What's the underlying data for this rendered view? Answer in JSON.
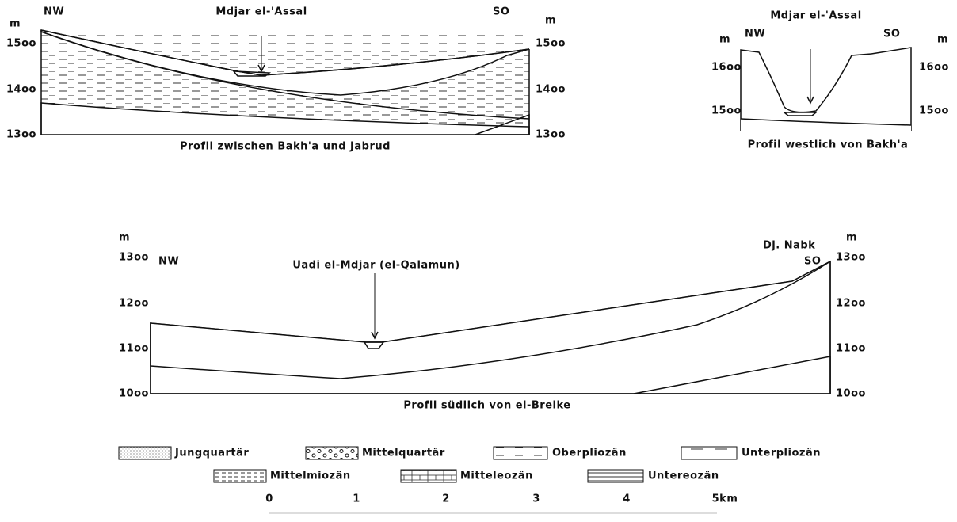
{
  "profile_1": {
    "corner_left": "NW",
    "corner_right": "SO",
    "unit_left": "m",
    "unit_right": "m",
    "label": "Mdjar el-'Assal",
    "ticks_left": [
      "15oo",
      "14oo",
      "13oo"
    ],
    "ticks_right": [
      "15oo",
      "14oo",
      "13oo"
    ],
    "caption": "Profil zwischen Bakh'a und Jabrud"
  },
  "profile_2": {
    "corner_left": "NW",
    "corner_right": "SO",
    "unit_left": "m",
    "unit_right": "m",
    "label": "Mdjar el-'Assal",
    "ticks_left": [
      "16oo",
      "15oo"
    ],
    "ticks_right": [
      "16oo",
      "15oo"
    ],
    "caption": "Profil  westlich von Bakh'a"
  },
  "profile_3": {
    "corner_left": "NW",
    "corner_right": "SO",
    "peak": "Dj. Nabk",
    "unit_left": "m",
    "unit_right": "m",
    "label": "Uadi el-Mdjar (el-Qalamun)",
    "ticks_left": [
      "13oo",
      "12oo",
      "11oo",
      "10oo"
    ],
    "ticks_right": [
      "13oo",
      "12oo",
      "11oo",
      "10oo"
    ],
    "caption": "Profil südlich von el-Breike"
  },
  "legend": [
    "Jungquartär",
    "Mittelquartär",
    "Oberpliozän",
    "Unterpliozän",
    "Mittelmiozän",
    "Mitteleozän",
    "Untereozän"
  ],
  "scale": [
    "0",
    "1",
    "2",
    "3",
    "4",
    "5km"
  ]
}
